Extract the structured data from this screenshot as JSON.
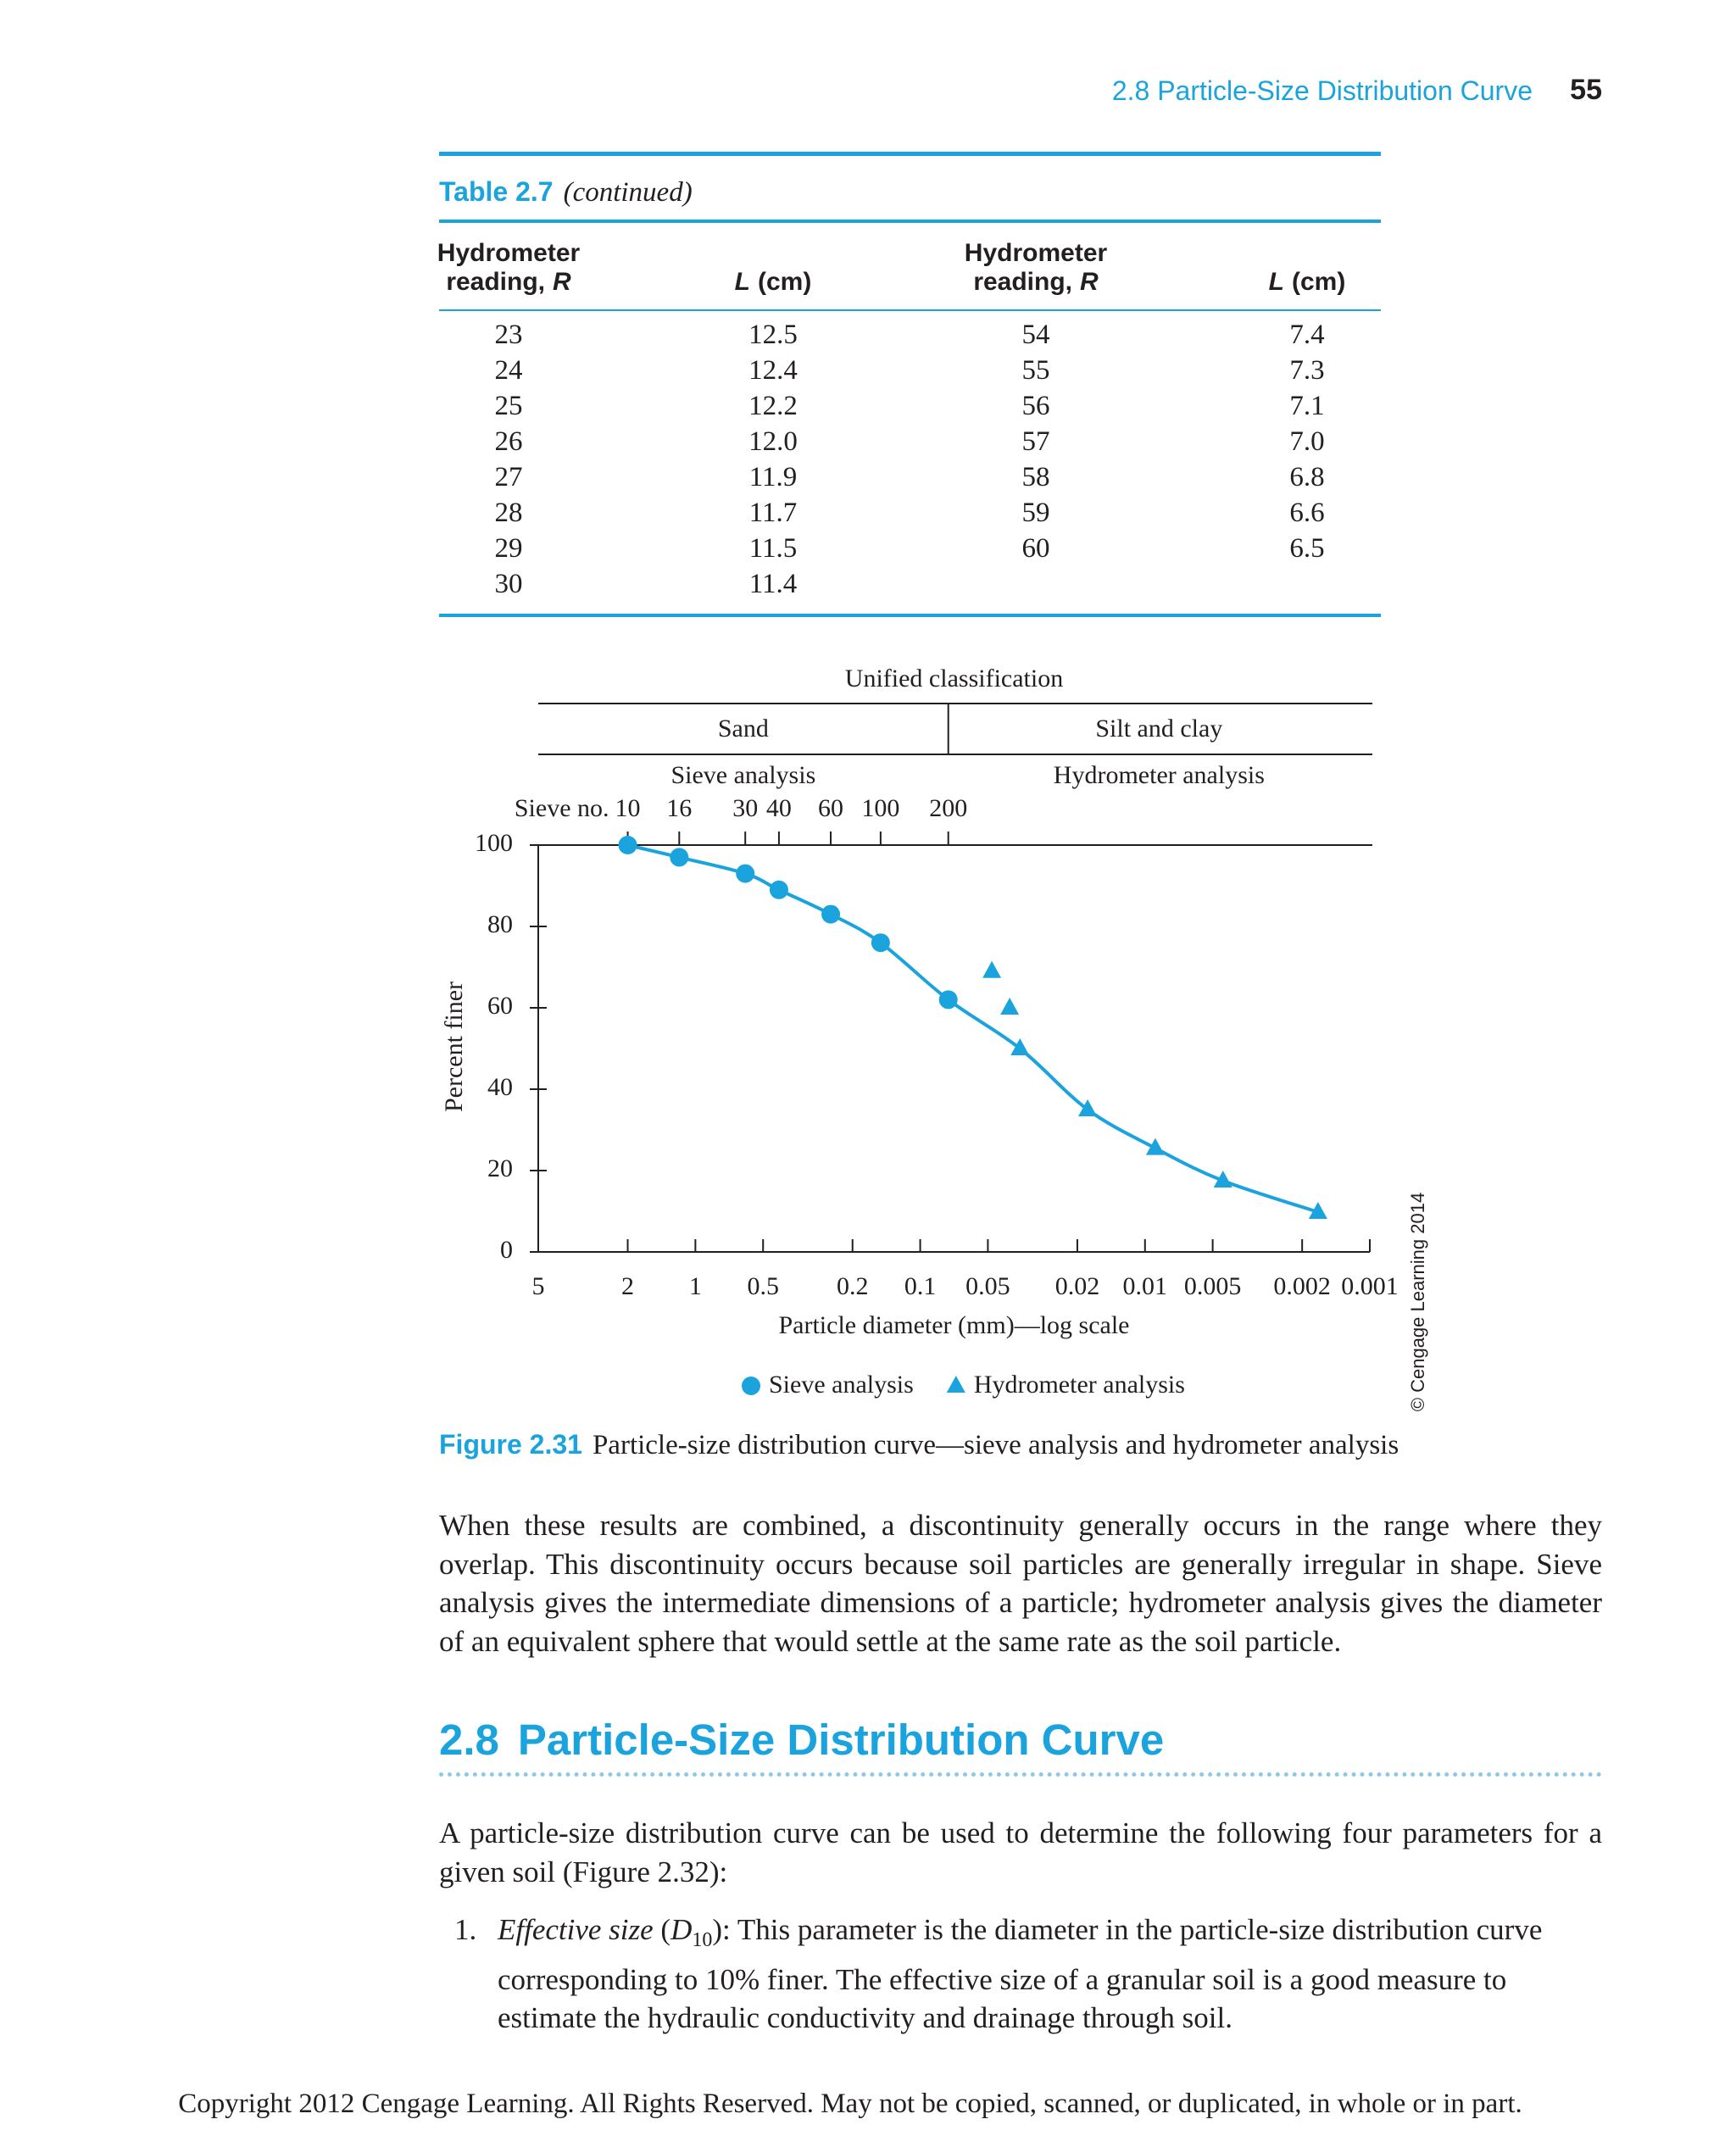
{
  "header": {
    "section": "2.8 Particle-Size Distribution Curve",
    "page": "55"
  },
  "table": {
    "label": "Table 2.7",
    "caption": "(continued)",
    "columns": [
      {
        "lines": [
          "Hydrometer",
          "reading,"
        ],
        "symbol": "R"
      },
      {
        "symbol": "L",
        "unit": "(cm)"
      },
      {
        "lines": [
          "Hydrometer",
          "reading,"
        ],
        "symbol": "R"
      },
      {
        "symbol": "L",
        "unit": "(cm)"
      }
    ],
    "rows": [
      [
        "23",
        "12.5",
        "54",
        "7.4"
      ],
      [
        "24",
        "12.4",
        "55",
        "7.3"
      ],
      [
        "25",
        "12.2",
        "56",
        "7.1"
      ],
      [
        "26",
        "12.0",
        "57",
        "7.0"
      ],
      [
        "27",
        "11.9",
        "58",
        "6.8"
      ],
      [
        "28",
        "11.7",
        "59",
        "6.6"
      ],
      [
        "29",
        "11.5",
        "60",
        "6.5"
      ],
      [
        "30",
        "11.4"
      ]
    ]
  },
  "chart_data": {
    "type": "scatter",
    "x_label": "Particle diameter (mm)—log scale",
    "y_label": "Percent finer",
    "xscale": "log",
    "xlim": [
      5,
      0.001
    ],
    "xticks": [
      5,
      2,
      1,
      0.5,
      0.2,
      0.1,
      0.05,
      0.02,
      0.01,
      0.005,
      0.002,
      0.001
    ],
    "ylim": [
      0,
      100
    ],
    "yticks": [
      0,
      20,
      40,
      60,
      80,
      100
    ],
    "classification": {
      "title": "Unified classification",
      "sand": "Sand",
      "silt_clay": "Silt and clay",
      "sieve": "Sieve analysis",
      "hydrometer": "Hydrometer analysis",
      "boundary": 0.075
    },
    "sieve_label": "Sieve no.",
    "sieve_ticks": [
      {
        "value": 2,
        "label": "10"
      },
      {
        "value": 1.18,
        "label": "16"
      },
      {
        "value": 0.6,
        "label": "30"
      },
      {
        "value": 0.425,
        "label": "40"
      },
      {
        "value": 0.25,
        "label": "60"
      },
      {
        "value": 0.15,
        "label": "100"
      },
      {
        "value": 0.075,
        "label": "200"
      }
    ],
    "series": [
      {
        "name": "Sieve analysis",
        "color": "#1aa3dd",
        "marker": "circle",
        "x": [
          2,
          1.18,
          0.6,
          0.425,
          0.25,
          0.15,
          0.075
        ],
        "values": [
          100,
          97,
          93,
          89,
          83,
          76,
          62
        ]
      },
      {
        "name": "Hydrometer analysis",
        "color": "#1aa3dd",
        "marker": "triangle",
        "x": [
          0.048,
          0.04,
          0.036,
          0.018,
          0.009,
          0.0045,
          0.0017
        ],
        "values": [
          69,
          60,
          50,
          35,
          25.5,
          17.5,
          9.8
        ]
      }
    ],
    "curve": {
      "color": "#1aa3dd",
      "x": [
        2,
        1.18,
        0.6,
        0.425,
        0.25,
        0.15,
        0.075,
        0.036,
        0.018,
        0.009,
        0.0045,
        0.0017
      ],
      "values": [
        100,
        97,
        93,
        89,
        83,
        76,
        62,
        50,
        35,
        25.5,
        17.5,
        9.8
      ]
    },
    "credit": "© Cengage Learning 2014"
  },
  "figure": {
    "label": "Figure 2.31",
    "caption": "Particle-size distribution curve—sieve analysis and hydrometer analysis"
  },
  "paragraph1": "When these results are combined, a discontinuity generally occurs in the range where they overlap. This discontinuity occurs because soil particles are generally irregular in shape. Sieve analysis gives the intermediate dimensions of a particle; hydrometer analysis gives the diameter of an equivalent sphere that would settle at the same rate as the soil particle.",
  "section": {
    "number": "2.8",
    "title": "Particle-Size Distribution Curve"
  },
  "paragraph2": "A particle-size distribution curve can be used to determine the following four parameters for a given soil (Figure 2.32):",
  "list": [
    {
      "number": "1.",
      "term": "Effective size",
      "open": "(",
      "symbol": "D",
      "subscript": "10",
      "text": "): This parameter is the diameter in the particle-size distribution curve corresponding to 10% finer. The effective size of a granular soil is a good measure to estimate the hydraulic conductivity and drainage through soil."
    }
  ],
  "footer": "Copyright 2012 Cengage Learning. All Rights Reserved. May not be copied, scanned, or duplicated, in whole or in part."
}
